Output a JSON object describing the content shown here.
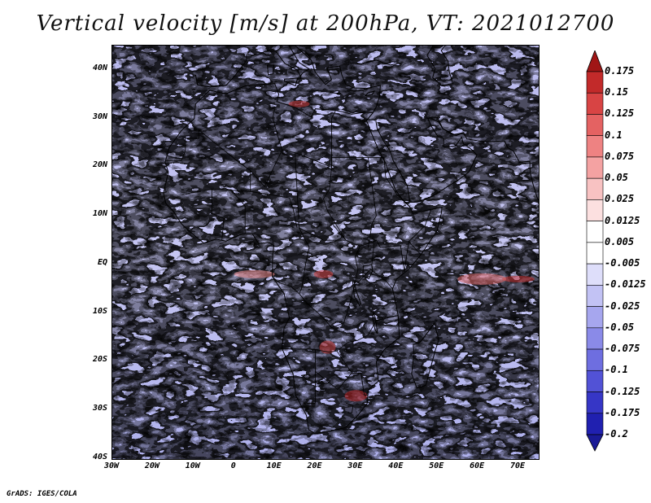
{
  "title": "Vertical velocity [m/s] at 200hPa, VT: 2021012700",
  "credit": "GrADS: IGES/COLA",
  "map": {
    "region": "Africa",
    "variable": "Vertical velocity",
    "level": "200hPa",
    "valid_time": "2021012700",
    "lon_range": [
      -30,
      75
    ],
    "lat_range": [
      -40,
      45
    ],
    "lat_ticks": [
      {
        "value": 40,
        "label": "40N"
      },
      {
        "value": 30,
        "label": "30N"
      },
      {
        "value": 20,
        "label": "20N"
      },
      {
        "value": 10,
        "label": "10N"
      },
      {
        "value": 0,
        "label": "EQ"
      },
      {
        "value": -10,
        "label": "10S"
      },
      {
        "value": -20,
        "label": "20S"
      },
      {
        "value": -30,
        "label": "30S"
      },
      {
        "value": -40,
        "label": "40S"
      }
    ],
    "lon_ticks": [
      {
        "value": -30,
        "label": "30W"
      },
      {
        "value": -20,
        "label": "20W"
      },
      {
        "value": -10,
        "label": "10W"
      },
      {
        "value": 0,
        "label": "0"
      },
      {
        "value": 10,
        "label": "10E"
      },
      {
        "value": 20,
        "label": "20E"
      },
      {
        "value": 30,
        "label": "30E"
      },
      {
        "value": 40,
        "label": "40E"
      },
      {
        "value": 50,
        "label": "50E"
      },
      {
        "value": 60,
        "label": "60E"
      },
      {
        "value": 70,
        "label": "70E"
      }
    ],
    "colorbar": {
      "levels": [
        "0.175",
        "0.15",
        "0.125",
        "0.1",
        "0.075",
        "0.05",
        "0.025",
        "0.0125",
        "0.005",
        "-0.005",
        "-0.0125",
        "-0.025",
        "-0.05",
        "-0.075",
        "-0.1",
        "-0.125",
        "-0.175",
        "-0.2"
      ],
      "colors": [
        "#a01616",
        "#c22a2a",
        "#d84444",
        "#e46262",
        "#ee8282",
        "#f4a2a2",
        "#f8c2c2",
        "#fce0e0",
        "#ffffff",
        "#ffffff",
        "#dedefa",
        "#c2c2f4",
        "#a6a6ee",
        "#8a8ae8",
        "#6e6ee0",
        "#5252d6",
        "#3636c6",
        "#2020b0",
        "#1a1a96"
      ]
    }
  }
}
